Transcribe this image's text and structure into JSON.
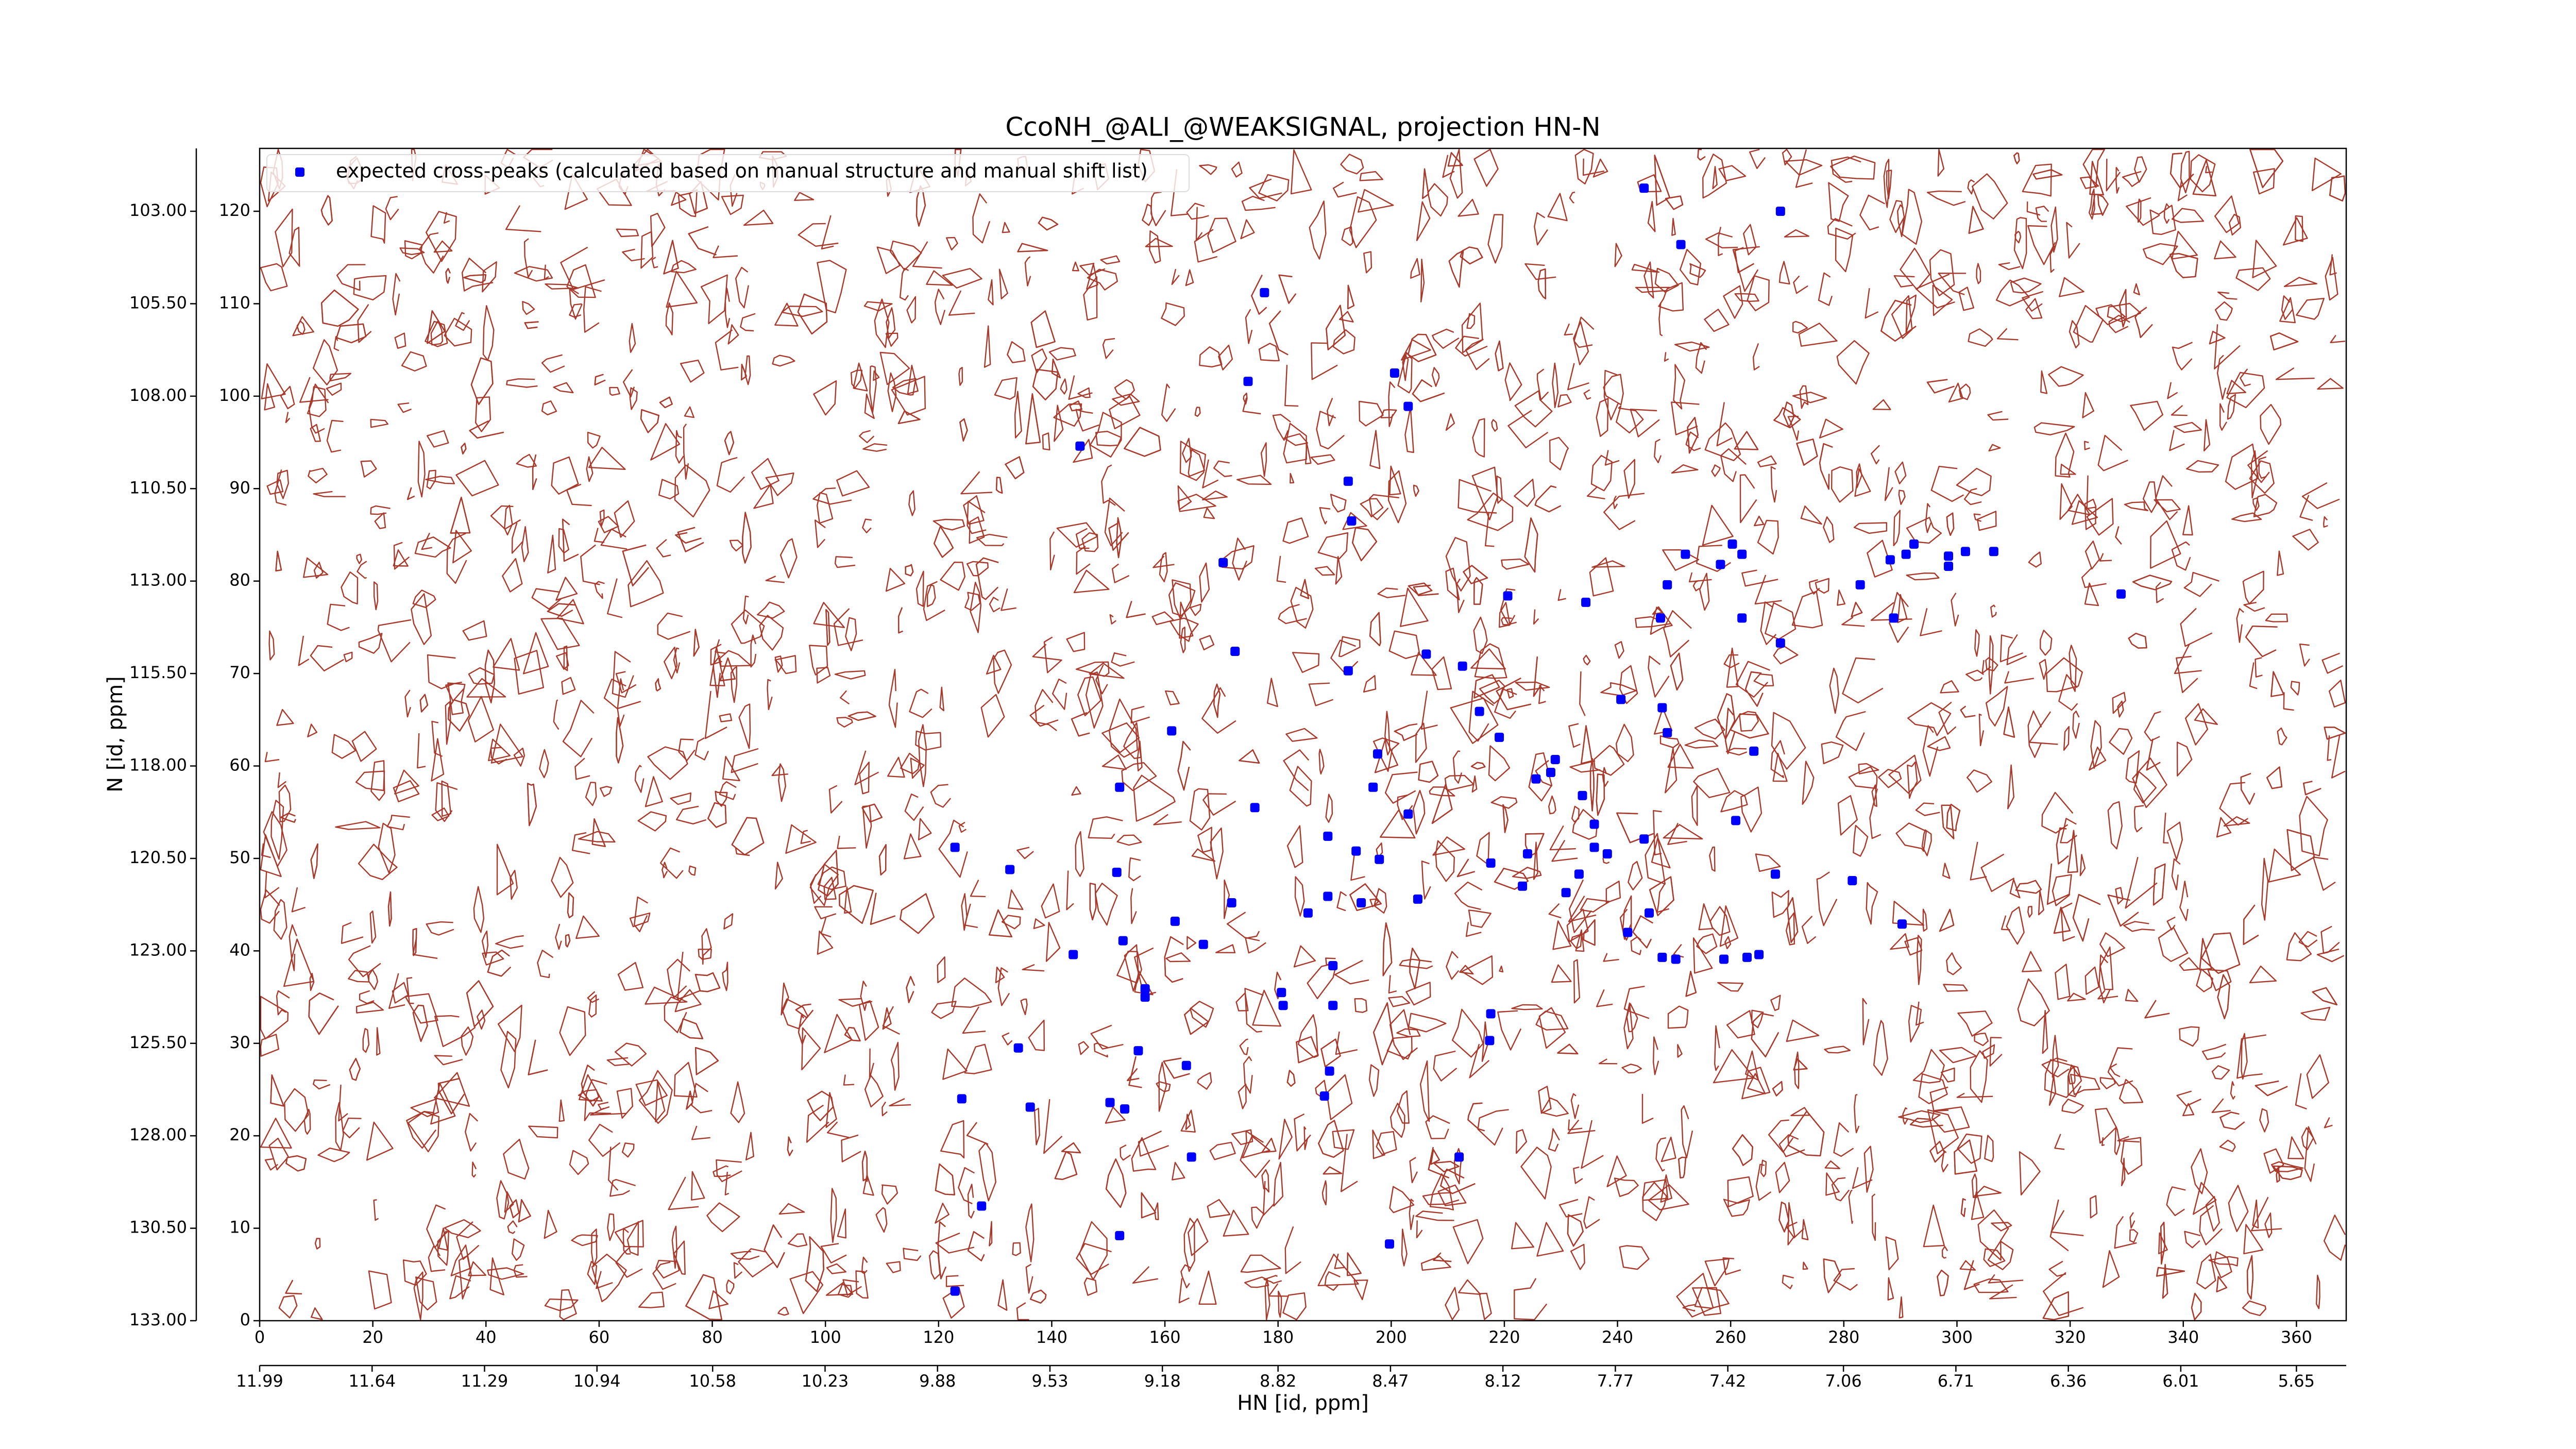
{
  "chart_data": {
    "type": "scatter",
    "title": "CcoNH_@ALI_@WEAKSIGNAL, projection HN-N",
    "x_label": "HN [id, ppm]",
    "y_label": "N [id, ppm]",
    "xlim": [
      0,
      368.8
    ],
    "ylim": [
      0,
      126.8
    ],
    "xticks": [
      0,
      20,
      40,
      60,
      80,
      100,
      120,
      140,
      160,
      180,
      200,
      220,
      240,
      260,
      280,
      300,
      320,
      340,
      360
    ],
    "yticks": [
      0,
      10,
      20,
      30,
      40,
      50,
      60,
      70,
      80,
      90,
      100,
      110,
      120
    ],
    "x2lim": [
      11.99,
      5.495
    ],
    "x2ticks": [
      11.99,
      11.64,
      11.29,
      10.94,
      10.58,
      10.23,
      9.88,
      9.53,
      9.18,
      8.82,
      8.47,
      8.12,
      7.77,
      7.42,
      7.06,
      6.71,
      6.36,
      6.01,
      5.65
    ],
    "y2lim": [
      133,
      101.3
    ],
    "y2ticks": [
      {
        "value": 103,
        "label": "103.00"
      },
      {
        "value": 105.5,
        "label": "105.50"
      },
      {
        "value": 108,
        "label": "108.00"
      },
      {
        "value": 110.5,
        "label": "110.50"
      },
      {
        "value": 113,
        "label": "113.00"
      },
      {
        "value": 115.5,
        "label": "115.50"
      },
      {
        "value": 118,
        "label": "118.00"
      },
      {
        "value": 120.5,
        "label": "120.50"
      },
      {
        "value": 123,
        "label": "123.00"
      },
      {
        "value": 125.5,
        "label": "125.50"
      },
      {
        "value": 128,
        "label": "128.00"
      },
      {
        "value": 130.5,
        "label": "130.50"
      },
      {
        "value": 133,
        "label": "133.00"
      }
    ],
    "legend": "upper left",
    "x": [
      244.7,
      268.8,
      251.2,
      177.6,
      200.6,
      174.7,
      203,
      145,
      192.4,
      193,
      170.3,
      252,
      260.3,
      258.2,
      262,
      288.2,
      291,
      292.4,
      298.5,
      298.5,
      301.5,
      306.5,
      248.8,
      220.6,
      234.4,
      282.9,
      329,
      247.6,
      262,
      288.8,
      268.8,
      172.4,
      206.2,
      212.6,
      192.4,
      240.6,
      247.9,
      215.6,
      248.8,
      161.2,
      219.1,
      264.1,
      197.6,
      229,
      228.2,
      225.6,
      196.8,
      152,
      233.8,
      175.9,
      203,
      260.9,
      235.9,
      188.8,
      244.7,
      122.9,
      235.9,
      193.8,
      238.2,
      224.1,
      197.9,
      217.6,
      132.6,
      151.5,
      233.2,
      267.9,
      281.5,
      223.2,
      230.9,
      188.8,
      204.7,
      194.7,
      171.8,
      185.3,
      245.6,
      161.8,
      290.3,
      241.8,
      152.6,
      166.8,
      143.8,
      247.9,
      250.3,
      258.8,
      262.9,
      265,
      189.7,
      156.5,
      180.6,
      156.5,
      180.9,
      189.7,
      217.6,
      217.4,
      134.1,
      155.3,
      163.8,
      189.1,
      188.2,
      124.1,
      150.3,
      136.2,
      152.9,
      164.7,
      212,
      127.6,
      152,
      199.7,
      122.9
    ],
    "series": [
      {
        "name": "expected cross-peaks (calculated based on manual structure and manual shift list)",
        "color": "#0000ff",
        "values": [
          122.5,
          120,
          116.4,
          111.2,
          102.5,
          101.6,
          98.9,
          94.6,
          90.8,
          86.5,
          82,
          82.9,
          84,
          81.8,
          82.9,
          82.3,
          82.9,
          84,
          82.7,
          81.6,
          83.2,
          83.2,
          79.6,
          78.4,
          77.7,
          79.6,
          78.6,
          76,
          76,
          76,
          73.3,
          72.4,
          72.1,
          70.8,
          70.3,
          67.2,
          66.3,
          65.9,
          63.6,
          63.8,
          63.1,
          61.6,
          61.3,
          60.7,
          59.3,
          58.6,
          57.7,
          57.7,
          56.8,
          55.5,
          54.8,
          54.1,
          53.7,
          52.4,
          52.1,
          51.2,
          51.2,
          50.8,
          50.5,
          50.5,
          49.9,
          49.5,
          48.8,
          48.5,
          48.3,
          48.3,
          47.6,
          47,
          46.3,
          45.9,
          45.6,
          45.2,
          45.2,
          44.1,
          44.1,
          43.2,
          42.9,
          42,
          41.1,
          40.7,
          39.6,
          39.3,
          39.1,
          39.1,
          39.3,
          39.6,
          38.4,
          35.9,
          35.5,
          35,
          34.1,
          34.1,
          33.2,
          30.3,
          29.5,
          29.2,
          27.6,
          27,
          24.3,
          24,
          23.6,
          23.1,
          22.9,
          17.7,
          17.7,
          12.4,
          9.2,
          8.3,
          3.2
        ]
      }
    ]
  }
}
